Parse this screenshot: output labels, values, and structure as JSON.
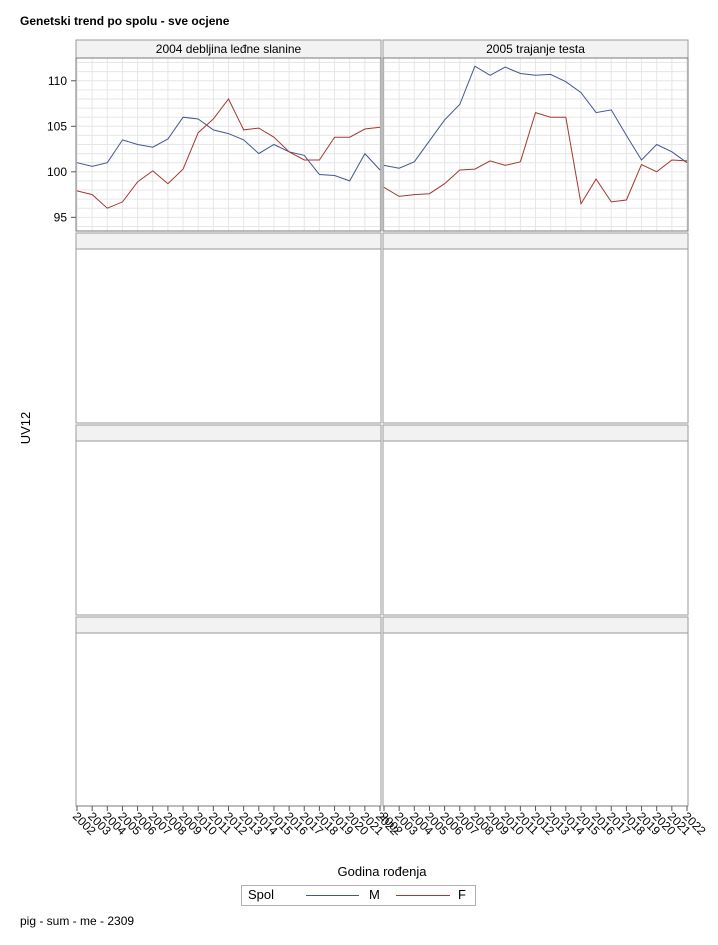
{
  "title": "Genetski trend po spolu - sve ocjene",
  "footnote": "pig - sum - me - 2309",
  "colors": {
    "M": "#44568f",
    "F": "#a23a30",
    "grid": "#e6e6e6",
    "frame": "#9a9a9a",
    "header_bg": "#f2f2f2"
  },
  "chart_data": {
    "type": "line",
    "xlabel": "Godina rođenja",
    "ylabel": "UV12",
    "ylim": [
      93.5,
      112.5
    ],
    "yticks": [
      95,
      100,
      105,
      110
    ],
    "x": [
      2002,
      2003,
      2004,
      2005,
      2006,
      2007,
      2008,
      2009,
      2010,
      2011,
      2012,
      2013,
      2014,
      2015,
      2016,
      2017,
      2018,
      2019,
      2020,
      2021,
      2022
    ],
    "xtick_labels": [
      "2002",
      "2003",
      "2004",
      "2005",
      "2006",
      "2007",
      "2008",
      "2009",
      "2010",
      "2011",
      "2012",
      "2013",
      "2014",
      "2015",
      "2016",
      "2017",
      "2018",
      "2019",
      "2020",
      "2021",
      "2022"
    ],
    "legend": {
      "title": "Spol",
      "entries": [
        "M",
        "F"
      ],
      "placement": "bottom"
    },
    "grid": true,
    "panels": [
      {
        "label": "2004 debljina leđne slanine",
        "series": [
          {
            "name": "M",
            "values": [
              101.0,
              100.6,
              101.0,
              103.5,
              103.0,
              102.7,
              103.6,
              106.0,
              105.8,
              104.6,
              104.2,
              103.5,
              102.0,
              103.0,
              102.2,
              101.8,
              99.7,
              99.6,
              99.0,
              102.0,
              100.2
            ]
          },
          {
            "name": "F",
            "values": [
              97.9,
              97.5,
              96.0,
              96.7,
              98.9,
              100.1,
              98.7,
              100.3,
              104.3,
              105.8,
              108.0,
              104.6,
              104.8,
              103.8,
              102.2,
              101.3,
              101.3,
              103.8,
              103.8,
              104.7,
              104.9
            ]
          }
        ]
      },
      {
        "label": "2005 trajanje testa",
        "series": [
          {
            "name": "M",
            "values": [
              100.7,
              100.4,
              101.1,
              103.4,
              105.7,
              107.4,
              111.6,
              110.6,
              111.5,
              110.8,
              110.6,
              110.7,
              109.9,
              108.7,
              106.5,
              106.8,
              104.0,
              101.3,
              103.0,
              102.2,
              101.0
            ]
          },
          {
            "name": "F",
            "values": [
              98.3,
              97.3,
              97.5,
              97.6,
              98.7,
              100.2,
              100.3,
              101.2,
              100.7,
              101.1,
              106.5,
              106.0,
              106.0,
              96.5,
              99.2,
              96.7,
              96.9,
              100.8,
              100.0,
              101.3,
              101.2
            ]
          }
        ]
      }
    ]
  }
}
